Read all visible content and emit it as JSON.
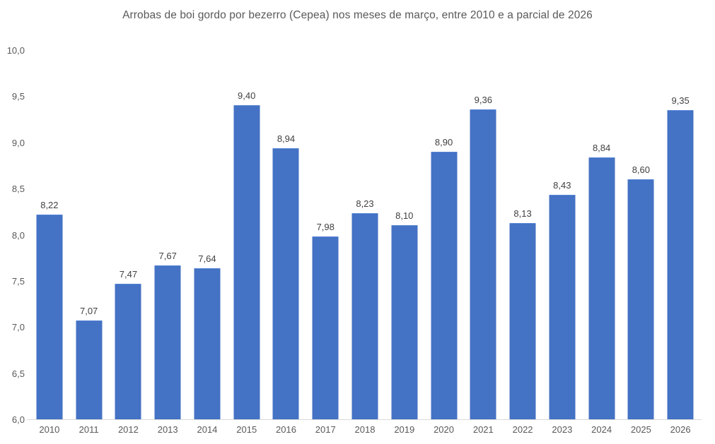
{
  "chart_data": {
    "type": "bar",
    "title": "Arrobas de boi gordo por bezerro (Cepea) nos meses de março, entre 2010 e a parcial de 2026",
    "categories": [
      "2010",
      "2011",
      "2012",
      "2013",
      "2014",
      "2015",
      "2016",
      "2017",
      "2018",
      "2019",
      "2020",
      "2021",
      "2022",
      "2023",
      "2024",
      "2025",
      "2026"
    ],
    "values": [
      8.22,
      7.07,
      7.47,
      7.67,
      7.64,
      9.4,
      8.94,
      7.98,
      8.23,
      8.1,
      8.9,
      9.36,
      8.13,
      8.43,
      8.84,
      8.6,
      9.35
    ],
    "value_labels": [
      "8,22",
      "7,07",
      "7,47",
      "7,67",
      "7,64",
      "9,40",
      "8,94",
      "7,98",
      "8,23",
      "8,10",
      "8,90",
      "9,36",
      "8,13",
      "8,43",
      "8,84",
      "8,60",
      "9,35"
    ],
    "xlabel": "",
    "ylabel": "",
    "ylim": [
      6.0,
      10.0
    ],
    "y_ticks": [
      {
        "label": "10,0",
        "value": 10.0
      },
      {
        "label": "9,5",
        "value": 9.5
      },
      {
        "label": "9,0",
        "value": 9.0
      },
      {
        "label": "8,5",
        "value": 8.5
      },
      {
        "label": "8,0",
        "value": 8.0
      },
      {
        "label": "7,5",
        "value": 7.5
      },
      {
        "label": "7,0",
        "value": 7.0
      },
      {
        "label": "6,5",
        "value": 6.5
      },
      {
        "label": "6,0",
        "value": 6.0
      }
    ],
    "grid": false,
    "legend": null,
    "bar_color": "#4472C4",
    "axis_line_color": "#D9D9D9",
    "label_color": "#404040",
    "axis_text_color": "#595959"
  }
}
